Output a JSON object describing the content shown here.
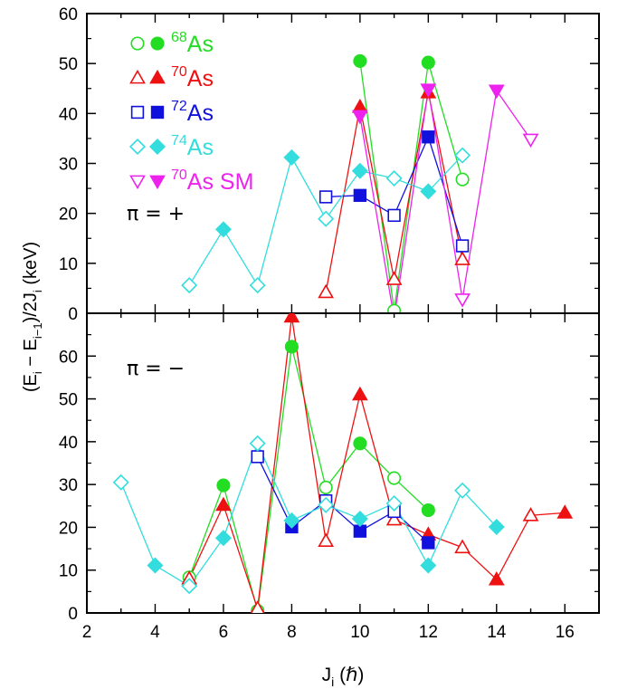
{
  "chart_data": {
    "type": "scatter",
    "xlabel_main": "J",
    "xlabel_sub": "i",
    "xlabel_unit": "(ℏ)",
    "ylabel_parts": [
      "(E",
      "i",
      " − E",
      "i−1",
      ")/2J",
      "i",
      " (keV)"
    ],
    "xlim": [
      2,
      17
    ],
    "x_ticks": [
      "2",
      "4",
      "6",
      "8",
      "10",
      "12",
      "14",
      "16"
    ],
    "legend_placement": "top-left",
    "series_meta": [
      {
        "name": "As",
        "mass": "68",
        "color": "#22dd22",
        "marker": "circle"
      },
      {
        "name": "As",
        "mass": "70",
        "color": "#ee1111",
        "marker": "triangle-up"
      },
      {
        "name": "As",
        "mass": "72",
        "color": "#1111dd",
        "marker": "square"
      },
      {
        "name": "As",
        "mass": "74",
        "color": "#33dddd",
        "marker": "diamond"
      },
      {
        "name": "As SM",
        "mass": "70",
        "color": "#ee22ee",
        "marker": "triangle-down"
      }
    ],
    "panels": [
      {
        "label": "π = +",
        "ylim": [
          0,
          60
        ],
        "y_ticks": [
          "0",
          "10",
          "20",
          "30",
          "40",
          "50",
          "60"
        ],
        "series": [
          {
            "points": [
              [
                10,
                50.5,
                1
              ],
              [
                11,
                0.5,
                0
              ],
              [
                12,
                50.2,
                1
              ],
              [
                13,
                26.8,
                0
              ]
            ]
          },
          {
            "points": [
              [
                9,
                4.2,
                0
              ],
              [
                10,
                41.3,
                1
              ],
              [
                11,
                6.8,
                0
              ],
              [
                12,
                44.2,
                1
              ],
              [
                13,
                10.8,
                0
              ]
            ]
          },
          {
            "points": [
              [
                9,
                23.3,
                0
              ],
              [
                10,
                23.6,
                1
              ],
              [
                11,
                19.6,
                0
              ],
              [
                12,
                35.3,
                1
              ],
              [
                13,
                13.5,
                0
              ]
            ]
          },
          {
            "points": [
              [
                5,
                5.6,
                0
              ],
              [
                6,
                16.8,
                1
              ],
              [
                7,
                5.6,
                0
              ],
              [
                8,
                31.2,
                1
              ],
              [
                9,
                18.9,
                0
              ],
              [
                10,
                28.5,
                1
              ],
              [
                11,
                27.0,
                0
              ],
              [
                12,
                24.4,
                1
              ],
              [
                13,
                31.6,
                0
              ]
            ]
          },
          {
            "points": [
              [
                10,
                39.5,
                1
              ],
              [
                11,
                -1,
                0
              ],
              [
                12,
                44.8,
                1
              ],
              [
                13,
                2.8,
                0
              ],
              [
                14,
                44.6,
                1
              ],
              [
                15,
                34.8,
                0
              ]
            ]
          }
        ]
      },
      {
        "label": "π = −",
        "ylim": [
          0,
          70
        ],
        "y_ticks": [
          "0",
          "10",
          "20",
          "30",
          "40",
          "50",
          "60"
        ],
        "series": [
          {
            "points": [
              [
                5,
                8.3,
                0
              ],
              [
                6,
                29.8,
                1
              ],
              [
                7,
                0.5,
                0
              ],
              [
                8,
                62.2,
                1
              ],
              [
                9,
                29.3,
                0
              ],
              [
                10,
                39.6,
                1
              ],
              [
                11,
                31.5,
                0
              ],
              [
                12,
                24.0,
                1
              ]
            ]
          },
          {
            "points": [
              [
                5,
                8.0,
                0
              ],
              [
                6,
                25.2,
                1
              ],
              [
                7,
                1.0,
                0
              ],
              [
                8,
                69.2,
                1
              ],
              [
                9,
                16.8,
                0
              ],
              [
                10,
                51.0,
                1
              ],
              [
                11,
                21.8,
                0
              ],
              [
                12,
                18.3,
                1
              ],
              [
                13,
                15.3,
                0
              ],
              [
                14,
                7.8,
                1
              ],
              [
                15,
                22.8,
                0
              ],
              [
                16,
                23.4,
                1
              ]
            ]
          },
          {
            "points": [
              [
                7,
                36.5,
                0
              ],
              [
                8,
                20.1,
                1
              ],
              [
                9,
                26.2,
                0
              ],
              [
                10,
                19.1,
                1
              ],
              [
                11,
                23.7,
                0
              ],
              [
                12,
                16.4,
                1
              ]
            ]
          },
          {
            "points": [
              [
                3,
                30.5,
                0
              ],
              [
                4,
                11.1,
                1
              ],
              [
                5,
                6.3,
                0
              ],
              [
                6,
                17.5,
                1
              ],
              [
                7,
                39.6,
                0
              ],
              [
                8,
                21.6,
                1
              ],
              [
                9,
                25.2,
                0
              ],
              [
                10,
                22.0,
                1
              ],
              [
                11,
                25.6,
                0
              ],
              [
                12,
                11.1,
                1
              ],
              [
                13,
                28.6,
                0
              ],
              [
                14,
                20.1,
                1
              ]
            ]
          }
        ]
      }
    ]
  }
}
